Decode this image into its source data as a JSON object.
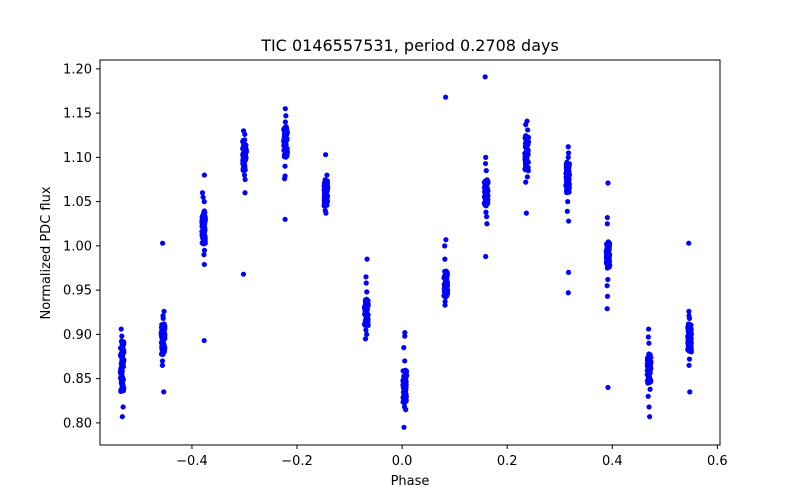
{
  "chart_data": {
    "type": "scatter",
    "title": "TIC 0146557531, period 0.2708 days",
    "xlabel": "Phase",
    "ylabel": "Normalized PDC flux",
    "xlim": [
      -0.575,
      0.605
    ],
    "ylim": [
      0.775,
      1.21
    ],
    "xticks": [
      -0.4,
      -0.2,
      0.0,
      0.2,
      0.4,
      0.6
    ],
    "xtick_labels": [
      "−0.4",
      "−0.2",
      "0.0",
      "0.2",
      "0.4",
      "0.6"
    ],
    "yticks": [
      0.8,
      0.85,
      0.9,
      0.95,
      1.0,
      1.05,
      1.1,
      1.15,
      1.2
    ],
    "ytick_labels": [
      "0.80",
      "0.85",
      "0.90",
      "0.95",
      "1.00",
      "1.05",
      "1.10",
      "1.15",
      "1.20"
    ],
    "marker_color": "#0000ff",
    "series": [
      {
        "name": "PDC flux",
        "clusters": [
          {
            "phase": -0.533,
            "core": [
              0.835,
              0.893
            ],
            "points": [
              0.906,
              0.898,
              0.892,
              0.818,
              0.807,
              0.842,
              0.88
            ]
          },
          {
            "phase": -0.455,
            "core": [
              0.877,
              0.912
            ],
            "points": [
              1.003,
              0.926,
              0.921,
              0.918,
              0.835,
              0.865,
              0.87
            ]
          },
          {
            "phase": -0.378,
            "core": [
              1.002,
              1.04
            ],
            "points": [
              1.08,
              1.06,
              1.055,
              1.05,
              0.893,
              0.979,
              0.99,
              0.995
            ]
          },
          {
            "phase": -0.3,
            "core": [
              1.085,
              1.12
            ],
            "points": [
              1.13,
              1.126,
              1.06,
              0.968,
              1.075,
              1.08
            ]
          },
          {
            "phase": -0.222,
            "core": [
              1.1,
              1.135
            ],
            "points": [
              1.155,
              1.147,
              1.14,
              1.03,
              1.076,
              1.079,
              1.09
            ]
          },
          {
            "phase": -0.145,
            "core": [
              1.045,
              1.075
            ],
            "points": [
              1.103,
              1.08,
              1.037,
              1.04
            ]
          },
          {
            "phase": -0.068,
            "core": [
              0.91,
              0.94
            ],
            "points": [
              0.985,
              0.965,
              0.958,
              0.948,
              0.895,
              0.9,
              0.905
            ]
          },
          {
            "phase": 0.005,
            "core": [
              0.822,
              0.86
            ],
            "points": [
              0.902,
              0.898,
              0.885,
              0.87,
              0.795,
              0.815,
              0.818
            ]
          },
          {
            "phase": 0.083,
            "core": [
              0.942,
              0.972
            ],
            "points": [
              1.168,
              1.007,
              1.0,
              0.985,
              0.933,
              0.937
            ]
          },
          {
            "phase": 0.16,
            "core": [
              1.045,
              1.075
            ],
            "points": [
              1.191,
              1.1,
              1.093,
              1.085,
              0.988,
              1.025,
              1.033,
              1.038
            ]
          },
          {
            "phase": 0.237,
            "core": [
              1.085,
              1.125
            ],
            "points": [
              1.141,
              1.137,
              1.131,
              1.037,
              1.072,
              1.078
            ]
          },
          {
            "phase": 0.315,
            "core": [
              1.06,
              1.095
            ],
            "points": [
              1.112,
              1.105,
              1.1,
              0.947,
              0.97,
              1.028,
              1.039,
              1.05
            ]
          },
          {
            "phase": 0.392,
            "core": [
              0.975,
              1.005
            ],
            "points": [
              1.071,
              1.032,
              1.025,
              0.84,
              0.929,
              0.943,
              0.955,
              0.962
            ]
          },
          {
            "phase": 0.47,
            "core": [
              0.845,
              0.878
            ],
            "points": [
              0.906,
              0.897,
              0.89,
              0.807,
              0.818,
              0.83,
              0.838
            ]
          },
          {
            "phase": 0.547,
            "core": [
              0.88,
              0.912
            ],
            "points": [
              1.003,
              0.926,
              0.921,
              0.918,
              0.835,
              0.865,
              0.872
            ]
          }
        ]
      }
    ]
  }
}
